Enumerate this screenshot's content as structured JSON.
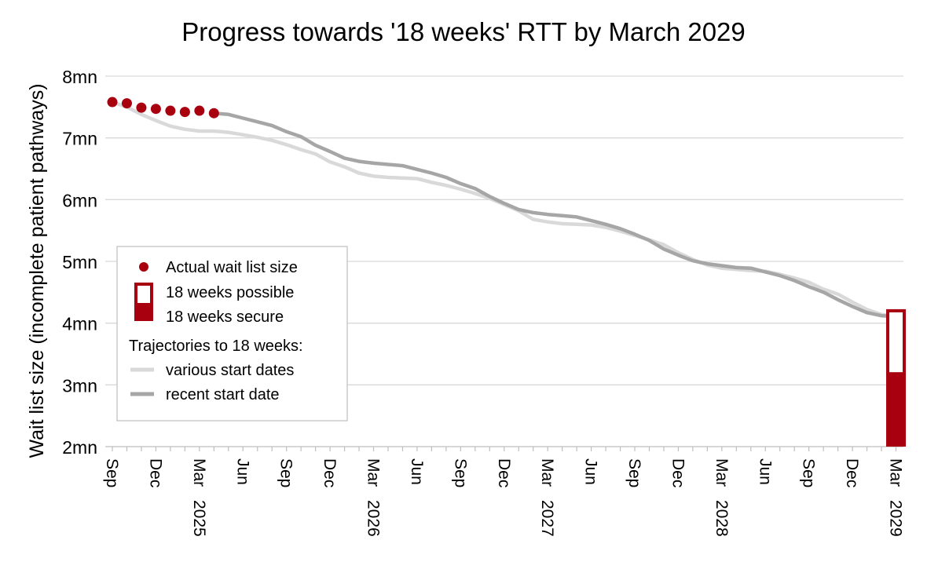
{
  "chart_data": {
    "type": "line",
    "title": "Progress towards '18 weeks' RTT by March 2029",
    "ylabel": "Wait list size (incomplete patient pathways)",
    "xlabel": "",
    "ylim": [
      2,
      8
    ],
    "yticks": [
      {
        "value": 2,
        "label": "2mn"
      },
      {
        "value": 3,
        "label": "3mn"
      },
      {
        "value": 4,
        "label": "4mn"
      },
      {
        "value": 5,
        "label": "5mn"
      },
      {
        "value": 6,
        "label": "6mn"
      },
      {
        "value": 7,
        "label": "7mn"
      },
      {
        "value": 8,
        "label": "8mn"
      }
    ],
    "xrange": [
      "2024-09",
      "2029-04"
    ],
    "xticks": [
      {
        "date": "2024-09",
        "label": "Sep",
        "year": ""
      },
      {
        "date": "2024-12",
        "label": "Dec",
        "year": ""
      },
      {
        "date": "2025-03",
        "label": "Mar",
        "year": "2025"
      },
      {
        "date": "2025-06",
        "label": "Jun",
        "year": ""
      },
      {
        "date": "2025-09",
        "label": "Sep",
        "year": ""
      },
      {
        "date": "2025-12",
        "label": "Dec",
        "year": ""
      },
      {
        "date": "2026-03",
        "label": "Mar",
        "year": "2026"
      },
      {
        "date": "2026-06",
        "label": "Jun",
        "year": ""
      },
      {
        "date": "2026-09",
        "label": "Sep",
        "year": ""
      },
      {
        "date": "2026-12",
        "label": "Dec",
        "year": ""
      },
      {
        "date": "2027-03",
        "label": "Mar",
        "year": "2027"
      },
      {
        "date": "2027-06",
        "label": "Jun",
        "year": ""
      },
      {
        "date": "2027-09",
        "label": "Sep",
        "year": ""
      },
      {
        "date": "2027-12",
        "label": "Dec",
        "year": ""
      },
      {
        "date": "2028-03",
        "label": "Mar",
        "year": "2028"
      },
      {
        "date": "2028-06",
        "label": "Jun",
        "year": ""
      },
      {
        "date": "2028-09",
        "label": "Sep",
        "year": ""
      },
      {
        "date": "2028-12",
        "label": "Dec",
        "year": ""
      },
      {
        "date": "2029-03",
        "label": "Mar",
        "year": "2029"
      }
    ],
    "grid": true,
    "legend_position": "left",
    "legend": {
      "actual": "Actual wait list size",
      "possible": "18 weeks possible",
      "secure": "18 weeks secure",
      "trajectories_heading": "Trajectories to 18 weeks:",
      "various": "various start dates",
      "recent": "recent start date"
    },
    "colors": {
      "actual": "#a8000e",
      "possible": "#a8000e",
      "secure": "#a8000e",
      "various": "#d9d9d9",
      "recent": "#a6a6a6",
      "grid": "#d9d9d9",
      "axis": "#bfbfbf"
    },
    "actual": [
      {
        "x": "2024-09",
        "y": 7.58
      },
      {
        "x": "2024-10",
        "y": 7.56
      },
      {
        "x": "2024-11",
        "y": 7.49
      },
      {
        "x": "2024-12",
        "y": 7.47
      },
      {
        "x": "2025-01",
        "y": 7.44
      },
      {
        "x": "2025-02",
        "y": 7.42
      },
      {
        "x": "2025-03",
        "y": 7.44
      },
      {
        "x": "2025-04",
        "y": 7.4
      }
    ],
    "series": [
      {
        "key": "various",
        "points": [
          {
            "x": "2024-09",
            "y": 7.58
          },
          {
            "x": "2024-10",
            "y": 7.5
          },
          {
            "x": "2024-11",
            "y": 7.38
          },
          {
            "x": "2024-12",
            "y": 7.28
          },
          {
            "x": "2025-01",
            "y": 7.19
          },
          {
            "x": "2025-02",
            "y": 7.14
          },
          {
            "x": "2025-03",
            "y": 7.11
          },
          {
            "x": "2025-04",
            "y": 7.11
          },
          {
            "x": "2025-05",
            "y": 7.09
          },
          {
            "x": "2025-06",
            "y": 7.05
          },
          {
            "x": "2025-07",
            "y": 7.01
          },
          {
            "x": "2025-08",
            "y": 6.96
          },
          {
            "x": "2025-09",
            "y": 6.89
          },
          {
            "x": "2025-10",
            "y": 6.81
          },
          {
            "x": "2025-11",
            "y": 6.74
          },
          {
            "x": "2025-12",
            "y": 6.61
          },
          {
            "x": "2026-01",
            "y": 6.53
          },
          {
            "x": "2026-02",
            "y": 6.43
          },
          {
            "x": "2026-03",
            "y": 6.38
          },
          {
            "x": "2026-04",
            "y": 6.36
          },
          {
            "x": "2026-05",
            "y": 6.35
          },
          {
            "x": "2026-06",
            "y": 6.34
          },
          {
            "x": "2026-07",
            "y": 6.28
          },
          {
            "x": "2026-08",
            "y": 6.23
          },
          {
            "x": "2026-09",
            "y": 6.17
          },
          {
            "x": "2026-10",
            "y": 6.1
          },
          {
            "x": "2026-11",
            "y": 6.02
          },
          {
            "x": "2026-12",
            "y": 5.92
          },
          {
            "x": "2027-01",
            "y": 5.82
          },
          {
            "x": "2027-02",
            "y": 5.68
          },
          {
            "x": "2027-03",
            "y": 5.64
          },
          {
            "x": "2027-04",
            "y": 5.61
          },
          {
            "x": "2027-05",
            "y": 5.6
          },
          {
            "x": "2027-06",
            "y": 5.59
          },
          {
            "x": "2027-07",
            "y": 5.55
          },
          {
            "x": "2027-08",
            "y": 5.49
          },
          {
            "x": "2027-09",
            "y": 5.42
          },
          {
            "x": "2027-10",
            "y": 5.35
          },
          {
            "x": "2027-11",
            "y": 5.27
          },
          {
            "x": "2027-12",
            "y": 5.14
          },
          {
            "x": "2028-01",
            "y": 5.03
          },
          {
            "x": "2028-02",
            "y": 4.94
          },
          {
            "x": "2028-03",
            "y": 4.89
          },
          {
            "x": "2028-04",
            "y": 4.87
          },
          {
            "x": "2028-05",
            "y": 4.85
          },
          {
            "x": "2028-06",
            "y": 4.84
          },
          {
            "x": "2028-07",
            "y": 4.79
          },
          {
            "x": "2028-08",
            "y": 4.73
          },
          {
            "x": "2028-09",
            "y": 4.66
          },
          {
            "x": "2028-10",
            "y": 4.55
          },
          {
            "x": "2028-11",
            "y": 4.47
          },
          {
            "x": "2028-12",
            "y": 4.34
          },
          {
            "x": "2029-01",
            "y": 4.22
          },
          {
            "x": "2029-02",
            "y": 4.14
          },
          {
            "x": "2029-03",
            "y": 4.11
          }
        ]
      },
      {
        "key": "recent",
        "points": [
          {
            "x": "2025-04",
            "y": 7.4
          },
          {
            "x": "2025-05",
            "y": 7.38
          },
          {
            "x": "2025-06",
            "y": 7.32
          },
          {
            "x": "2025-07",
            "y": 7.26
          },
          {
            "x": "2025-08",
            "y": 7.2
          },
          {
            "x": "2025-09",
            "y": 7.1
          },
          {
            "x": "2025-10",
            "y": 7.02
          },
          {
            "x": "2025-11",
            "y": 6.88
          },
          {
            "x": "2025-12",
            "y": 6.78
          },
          {
            "x": "2026-01",
            "y": 6.67
          },
          {
            "x": "2026-02",
            "y": 6.62
          },
          {
            "x": "2026-03",
            "y": 6.59
          },
          {
            "x": "2026-04",
            "y": 6.57
          },
          {
            "x": "2026-05",
            "y": 6.55
          },
          {
            "x": "2026-06",
            "y": 6.49
          },
          {
            "x": "2026-07",
            "y": 6.43
          },
          {
            "x": "2026-08",
            "y": 6.36
          },
          {
            "x": "2026-09",
            "y": 6.26
          },
          {
            "x": "2026-10",
            "y": 6.18
          },
          {
            "x": "2026-11",
            "y": 6.05
          },
          {
            "x": "2026-12",
            "y": 5.94
          },
          {
            "x": "2027-01",
            "y": 5.84
          },
          {
            "x": "2027-02",
            "y": 5.79
          },
          {
            "x": "2027-03",
            "y": 5.76
          },
          {
            "x": "2027-04",
            "y": 5.74
          },
          {
            "x": "2027-05",
            "y": 5.72
          },
          {
            "x": "2027-06",
            "y": 5.66
          },
          {
            "x": "2027-07",
            "y": 5.6
          },
          {
            "x": "2027-08",
            "y": 5.53
          },
          {
            "x": "2027-09",
            "y": 5.44
          },
          {
            "x": "2027-10",
            "y": 5.34
          },
          {
            "x": "2027-11",
            "y": 5.2
          },
          {
            "x": "2027-12",
            "y": 5.1
          },
          {
            "x": "2028-01",
            "y": 5.01
          },
          {
            "x": "2028-02",
            "y": 4.96
          },
          {
            "x": "2028-03",
            "y": 4.93
          },
          {
            "x": "2028-04",
            "y": 4.9
          },
          {
            "x": "2028-05",
            "y": 4.89
          },
          {
            "x": "2028-06",
            "y": 4.83
          },
          {
            "x": "2028-07",
            "y": 4.77
          },
          {
            "x": "2028-08",
            "y": 4.69
          },
          {
            "x": "2028-09",
            "y": 4.59
          },
          {
            "x": "2028-10",
            "y": 4.5
          },
          {
            "x": "2028-11",
            "y": 4.38
          },
          {
            "x": "2028-12",
            "y": 4.27
          },
          {
            "x": "2029-01",
            "y": 4.17
          },
          {
            "x": "2029-02",
            "y": 4.12
          },
          {
            "x": "2029-03",
            "y": 4.11
          }
        ]
      }
    ],
    "target_bar": {
      "x": "2029-03",
      "possible_top": 4.2,
      "secure_top": 3.18,
      "base": 2.0
    }
  }
}
